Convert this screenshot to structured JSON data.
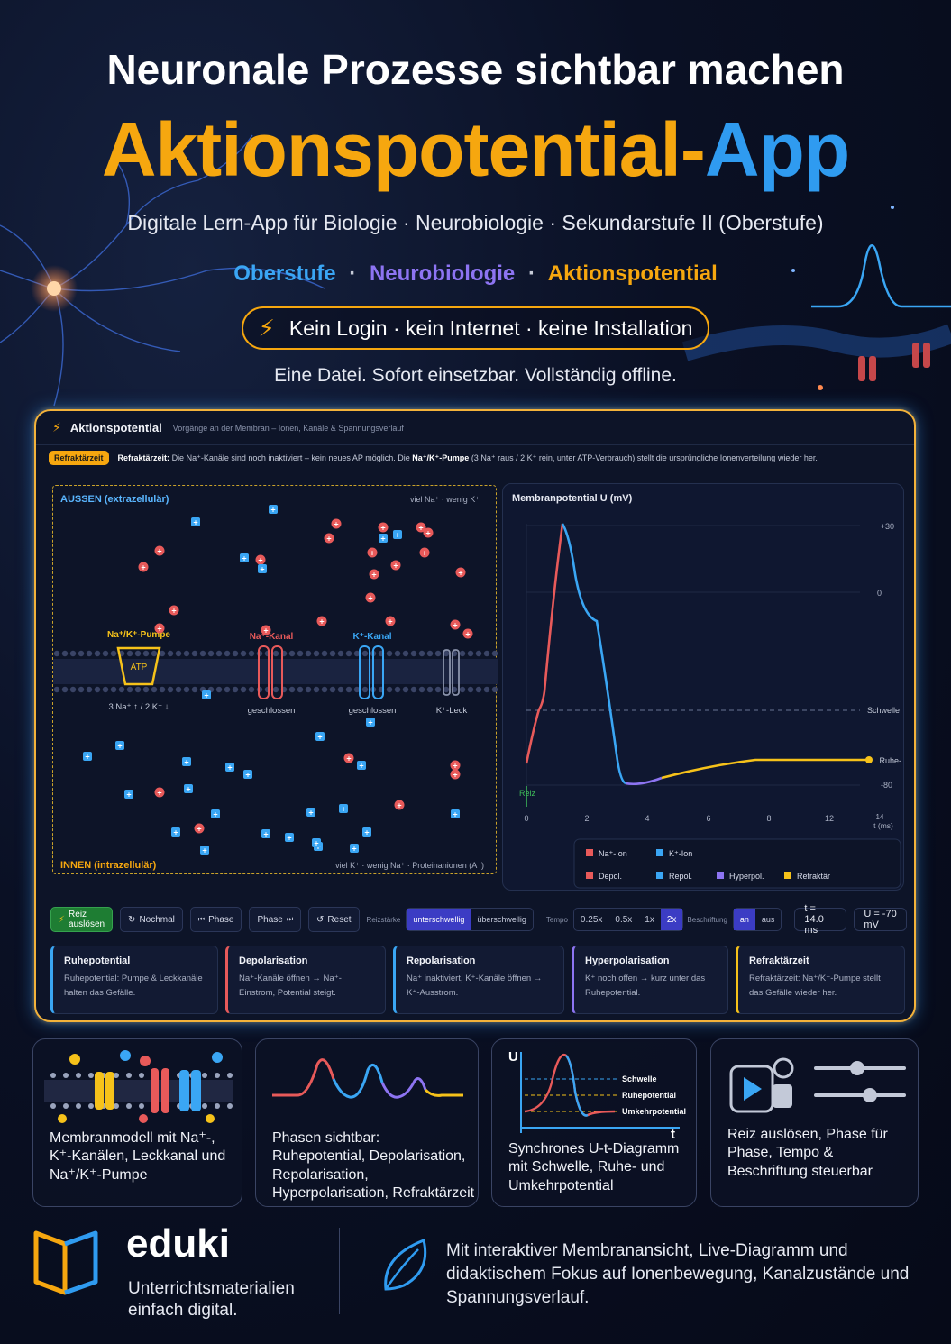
{
  "header": {
    "title_line1": "Neuronale Prozesse sichtbar machen",
    "title_part1": "Aktionspotential-",
    "title_part2": "App",
    "subtitle": "Digitale Lern-App für Biologie · Neurobiologie · Sekundarstufe II (Oberstufe)",
    "tags": [
      "Oberstufe",
      "Neurobiologie",
      "Aktionspotential"
    ],
    "tag_separator": "·",
    "pill_text": "Kein Login · kein Internet · keine Installation",
    "offline_text": "Eine Datei. Sofort einsetzbar. Vollständig offline."
  },
  "app": {
    "name": "Aktionspotential",
    "subtitle": "Vorgänge an der Membran – Ionen, Kanäle & Spannungsverlauf",
    "info_badge": "Refraktärzeit",
    "info_label": "Refraktärzeit:",
    "info_text1": " Die Na⁺-Kanäle sind noch inaktiviert – kein neues AP möglich. Die ",
    "info_bold2": "Na⁺/K⁺-Pumpe",
    "info_text2": " (3 Na⁺ raus / 2 K⁺ rein, unter ATP-Verbrauch) stellt die ursprüngliche Ionenverteilung wieder her.",
    "membrane": {
      "outside_label": "AUSSEN (extrazellulär)",
      "outside_note": "viel Na⁺ · wenig K⁺",
      "inside_label": "INNEN (intrazellulär)",
      "inside_note": "viel K⁺ · wenig Na⁺ · Proteinanionen (A⁻)",
      "pump_label": "Na⁺/K⁺-Pumpe",
      "pump_inner": "ATP",
      "pump_note": "3 Na⁺ ↑ / 2 K⁺ ↓",
      "na_channel_label": "Na⁺-Kanal",
      "na_channel_state": "geschlossen",
      "k_channel_label": "K⁺-Kanal",
      "k_channel_state": "geschlossen",
      "leak_label": "K⁺-Leck",
      "na_sign": "+",
      "k_sign": "+",
      "colors": {
        "na": "#e85a5a",
        "k": "#3aa6f4",
        "pump": "#f6c21a"
      }
    },
    "diagram": {
      "title": "Membranpotential U (mV)",
      "label_plus30": "+30",
      "label_zero": "0",
      "label_threshold": "Schwelle",
      "label_rest": "Ruhe-",
      "label_minus80": "-80",
      "stimulus_label": "Reiz",
      "x_ticks": [
        "0",
        "2",
        "4",
        "6",
        "8",
        "12",
        "14"
      ],
      "x_unit": "t (ms)",
      "legend": [
        {
          "label": "Na⁺-Ion",
          "color": "#e85a5a"
        },
        {
          "label": "K⁺-Ion",
          "color": "#3aa6f4"
        },
        {
          "label": "Depol.",
          "color": "#e85a5a"
        },
        {
          "label": "Repol.",
          "color": "#3aa6f4"
        },
        {
          "label": "Hyperpol.",
          "color": "#8d74f2"
        },
        {
          "label": "Refraktär",
          "color": "#f6c21a"
        }
      ]
    },
    "controls": {
      "stimulus_button": "Reiz auslösen",
      "again_button": "Nochmal",
      "phase_back_button": "Phase",
      "phase_forward_button": "Phase",
      "reset_button": "Reset",
      "strength_label": "Reizstärke",
      "strength_options": [
        "unterschwellig",
        "überschwellig"
      ],
      "strength_selected": "unterschwellig",
      "tempo_label": "Tempo",
      "tempo_options": [
        "0.25x",
        "0.5x",
        "1x",
        "2x"
      ],
      "tempo_selected": "2x",
      "labels_label": "Beschriftung",
      "labels_options": [
        "an",
        "aus"
      ],
      "labels_selected": "an",
      "time_readout": "t = 14.0 ms",
      "voltage_readout": "U = -70 mV"
    },
    "phases": [
      {
        "title": "Ruhepotential",
        "text": "Ruhepotential: Pumpe & Leckkanäle halten das Gefälle.",
        "color": "#3aa6f4"
      },
      {
        "title": "Depolarisation",
        "text": "Na⁺-Kanäle öffnen → Na⁺-Einstrom, Potential steigt.",
        "color": "#e85a5a"
      },
      {
        "title": "Repolarisation",
        "text": "Na⁺ inaktiviert, K⁺-Kanäle öffnen → K⁺-Ausstrom.",
        "color": "#3aa6f4"
      },
      {
        "title": "Hyperpolarisation",
        "text": "K⁺ noch offen → kurz unter das Ruhepotential.",
        "color": "#8d74f2"
      },
      {
        "title": "Refraktärzeit",
        "text": "Refraktärzeit: Na⁺/K⁺-Pumpe stellt das Gefälle wieder her.",
        "color": "#f6c21a"
      }
    ]
  },
  "features": [
    {
      "text": "Membranmodell mit Na⁺-, K⁺-Kanälen, Leckkanal und Na⁺/K⁺-Pumpe",
      "icon": "membrane-icon"
    },
    {
      "text": "Phasen sichtbar: Ruhepotential, Depolarisation, Repolarisation, Hyperpolarisation, Refraktärzeit",
      "icon": "wave-icon"
    },
    {
      "text": "Synchrones U-t-Diagramm mit Schwelle, Ruhe- und Umkehrpotential",
      "icon": "diagram-icon",
      "mini_labels": {
        "u": "U",
        "t": "t",
        "threshold": "Schwelle",
        "rest": "Ruhepotential",
        "reversal": "Umkehrpotential"
      }
    },
    {
      "text": "Reiz auslösen, Phase für Phase, Tempo & Beschriftung steuerbar",
      "icon": "controls-icon"
    }
  ],
  "footer": {
    "brand": "eduki",
    "tagline": "Unterrichtsmaterialien einfach digital.",
    "description": "Mit interaktiver Membranansicht, Live-Diagramm und didaktischem Fokus auf Ionenbewegung, Kanalzustände und Spannungsverlauf."
  }
}
